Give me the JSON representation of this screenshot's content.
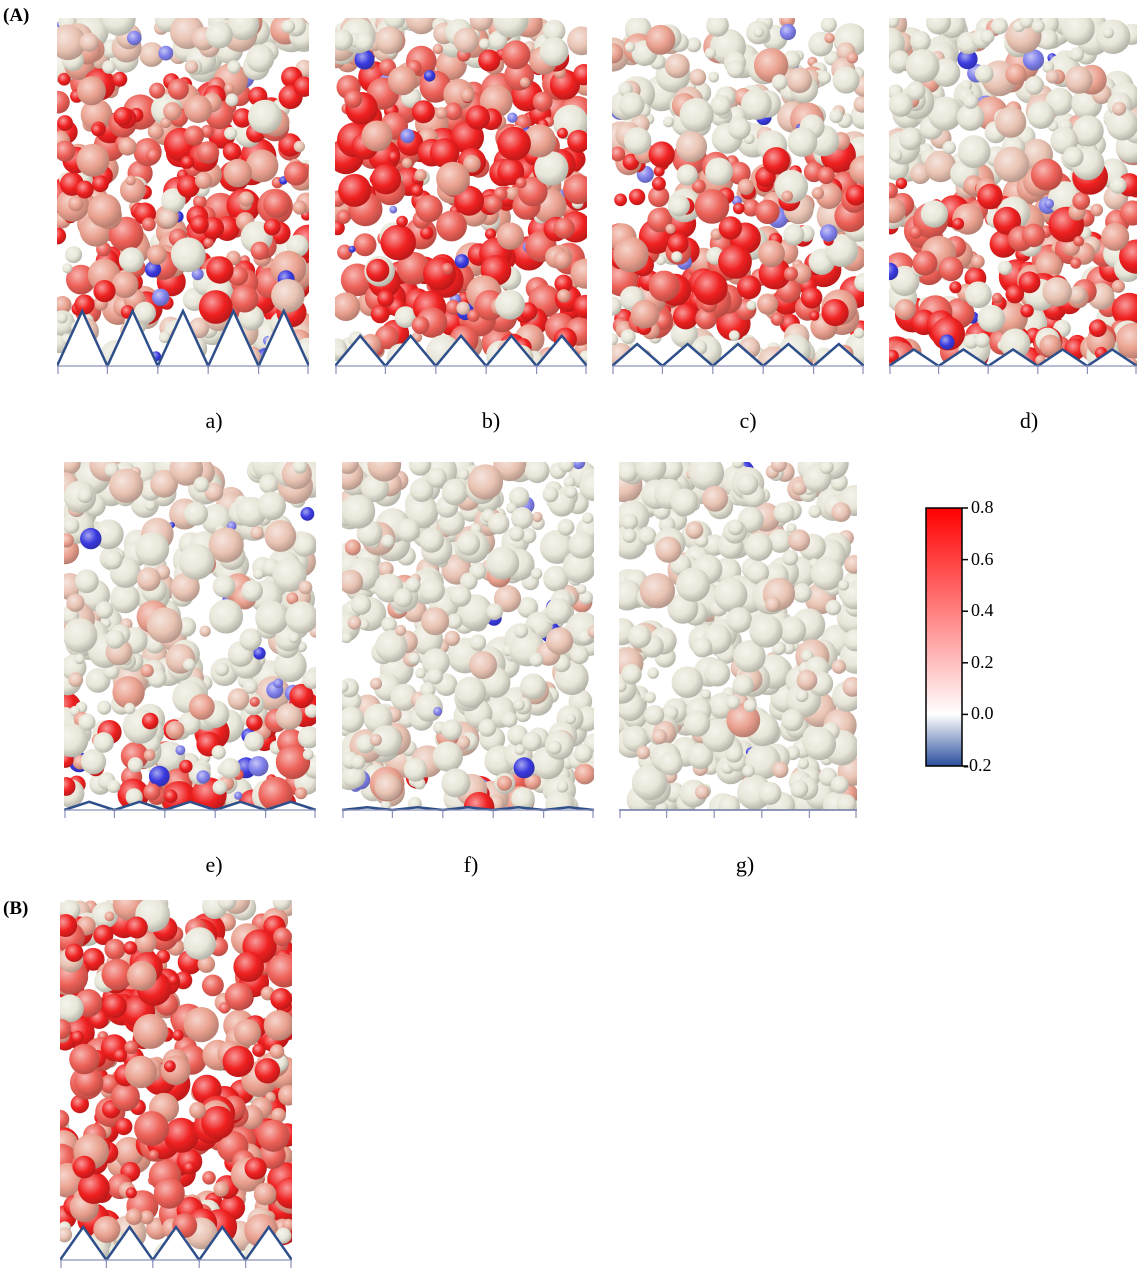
{
  "figure": {
    "section_a_label": "(A)",
    "section_b_label": "(B)",
    "panels": [
      {
        "id": "a",
        "caption": "a)",
        "tooth_count": 5,
        "tooth_height_ratio": 1.0,
        "red_fraction": 0.75,
        "red_band": [
          0.15,
          0.85
        ],
        "blue_fraction": 0.04
      },
      {
        "id": "b",
        "caption": "b)",
        "tooth_count": 5,
        "tooth_height_ratio": 0.55,
        "red_fraction": 0.8,
        "red_band": [
          0.05,
          0.9
        ],
        "blue_fraction": 0.07
      },
      {
        "id": "c",
        "caption": "c)",
        "tooth_count": 5,
        "tooth_height_ratio": 0.4,
        "red_fraction": 0.7,
        "red_band": [
          0.1,
          0.62
        ],
        "blue_fraction": 0.03
      },
      {
        "id": "d",
        "caption": "d)",
        "tooth_count": 5,
        "tooth_height_ratio": 0.3,
        "red_fraction": 0.55,
        "red_band": [
          0.0,
          0.55
        ],
        "blue_fraction": 0.03
      },
      {
        "id": "e",
        "caption": "e)",
        "tooth_count": 5,
        "tooth_height_ratio": 0.15,
        "red_fraction": 0.35,
        "red_band": [
          0.0,
          0.35
        ],
        "blue_fraction": 0.05
      },
      {
        "id": "f",
        "caption": "f)",
        "tooth_count": 5,
        "tooth_height_ratio": 0.05,
        "red_fraction": 0.12,
        "red_band": [
          0.0,
          0.1
        ],
        "blue_fraction": 0.03
      },
      {
        "id": "g",
        "caption": "g)",
        "tooth_count": 5,
        "tooth_height_ratio": 0.0,
        "red_fraction": 0.03,
        "red_band": [
          0.0,
          0.05
        ],
        "blue_fraction": 0.02
      },
      {
        "id": "B",
        "caption": "",
        "tooth_count": 5,
        "tooth_height_ratio": 0.6,
        "red_fraction": 0.8,
        "red_band": [
          0.08,
          0.95
        ],
        "blue_fraction": 0.0
      }
    ],
    "colorbar": {
      "ticks": [
        "0.8",
        "0.6",
        "0.4",
        "0.2",
        "0.0",
        "-0.2"
      ],
      "min": -0.2,
      "max": 0.8,
      "color_low": "#2b4f9e",
      "color_mid": "#ffffff",
      "color_high": "#ff0000"
    },
    "colors": {
      "particle_neutral": "#e8e6d8",
      "particle_red": "#f02020",
      "particle_pink": "#eaa08e",
      "particle_blue": "#3a3ae0",
      "boundary_line": "#2e4f8a"
    }
  }
}
